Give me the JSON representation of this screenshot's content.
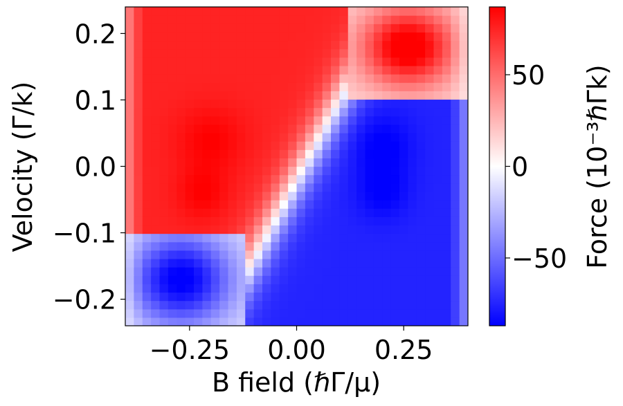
{
  "chart_data": {
    "type": "heatmap",
    "title": "",
    "xlabel": "B field (ℏΓ/μ)",
    "ylabel": "Velocity (Γ/k)",
    "xlim": [
      -0.4,
      0.4
    ],
    "ylim": [
      -0.24,
      0.24
    ],
    "x_ticks": [
      {
        "value": -0.25,
        "label": "−0.25"
      },
      {
        "value": 0.0,
        "label": "0.00"
      },
      {
        "value": 0.25,
        "label": "0.25"
      }
    ],
    "y_ticks": [
      {
        "value": -0.2,
        "label": "−0.2"
      },
      {
        "value": -0.1,
        "label": "−0.1"
      },
      {
        "value": 0.0,
        "label": "0.0"
      },
      {
        "value": 0.1,
        "label": "0.1"
      },
      {
        "value": 0.2,
        "label": "0.2"
      }
    ],
    "grid": false,
    "colorbar": {
      "label": "Force (10⁻³ℏΓk)",
      "range": [
        -87,
        87
      ],
      "colormap": "bwr",
      "colors": [
        "#0000ff",
        "#ffffff",
        "#ff0000"
      ],
      "ticks": [
        {
          "value": 50,
          "label": "50"
        },
        {
          "value": 0,
          "label": "0"
        },
        {
          "value": -50,
          "label": "−50"
        }
      ]
    },
    "grid_size": {
      "nx": 40,
      "ny": 38
    },
    "features": [
      {
        "region": "upper-left lobe",
        "peak_x": -0.2,
        "peak_y": 0.04,
        "value": 85
      },
      {
        "region": "upper-left lobe",
        "peak_x": -0.22,
        "peak_y": -0.04,
        "value": 85
      },
      {
        "region": "upper-left lobe",
        "peak_x": -0.15,
        "peak_y": 0.13,
        "value": 70
      },
      {
        "region": "top-right lobe",
        "peak_x": 0.26,
        "peak_y": 0.18,
        "value": 82
      },
      {
        "region": "lower-right lobe",
        "peak_x": 0.2,
        "peak_y": 0.03,
        "value": -88
      },
      {
        "region": "lower-right lobe",
        "peak_x": 0.2,
        "peak_y": -0.04,
        "value": -85
      },
      {
        "region": "lower-right lobe",
        "peak_x": 0.15,
        "peak_y": -0.13,
        "value": -70
      },
      {
        "region": "bottom-left lobe",
        "peak_x": -0.27,
        "peak_y": -0.17,
        "value": -80
      }
    ]
  }
}
